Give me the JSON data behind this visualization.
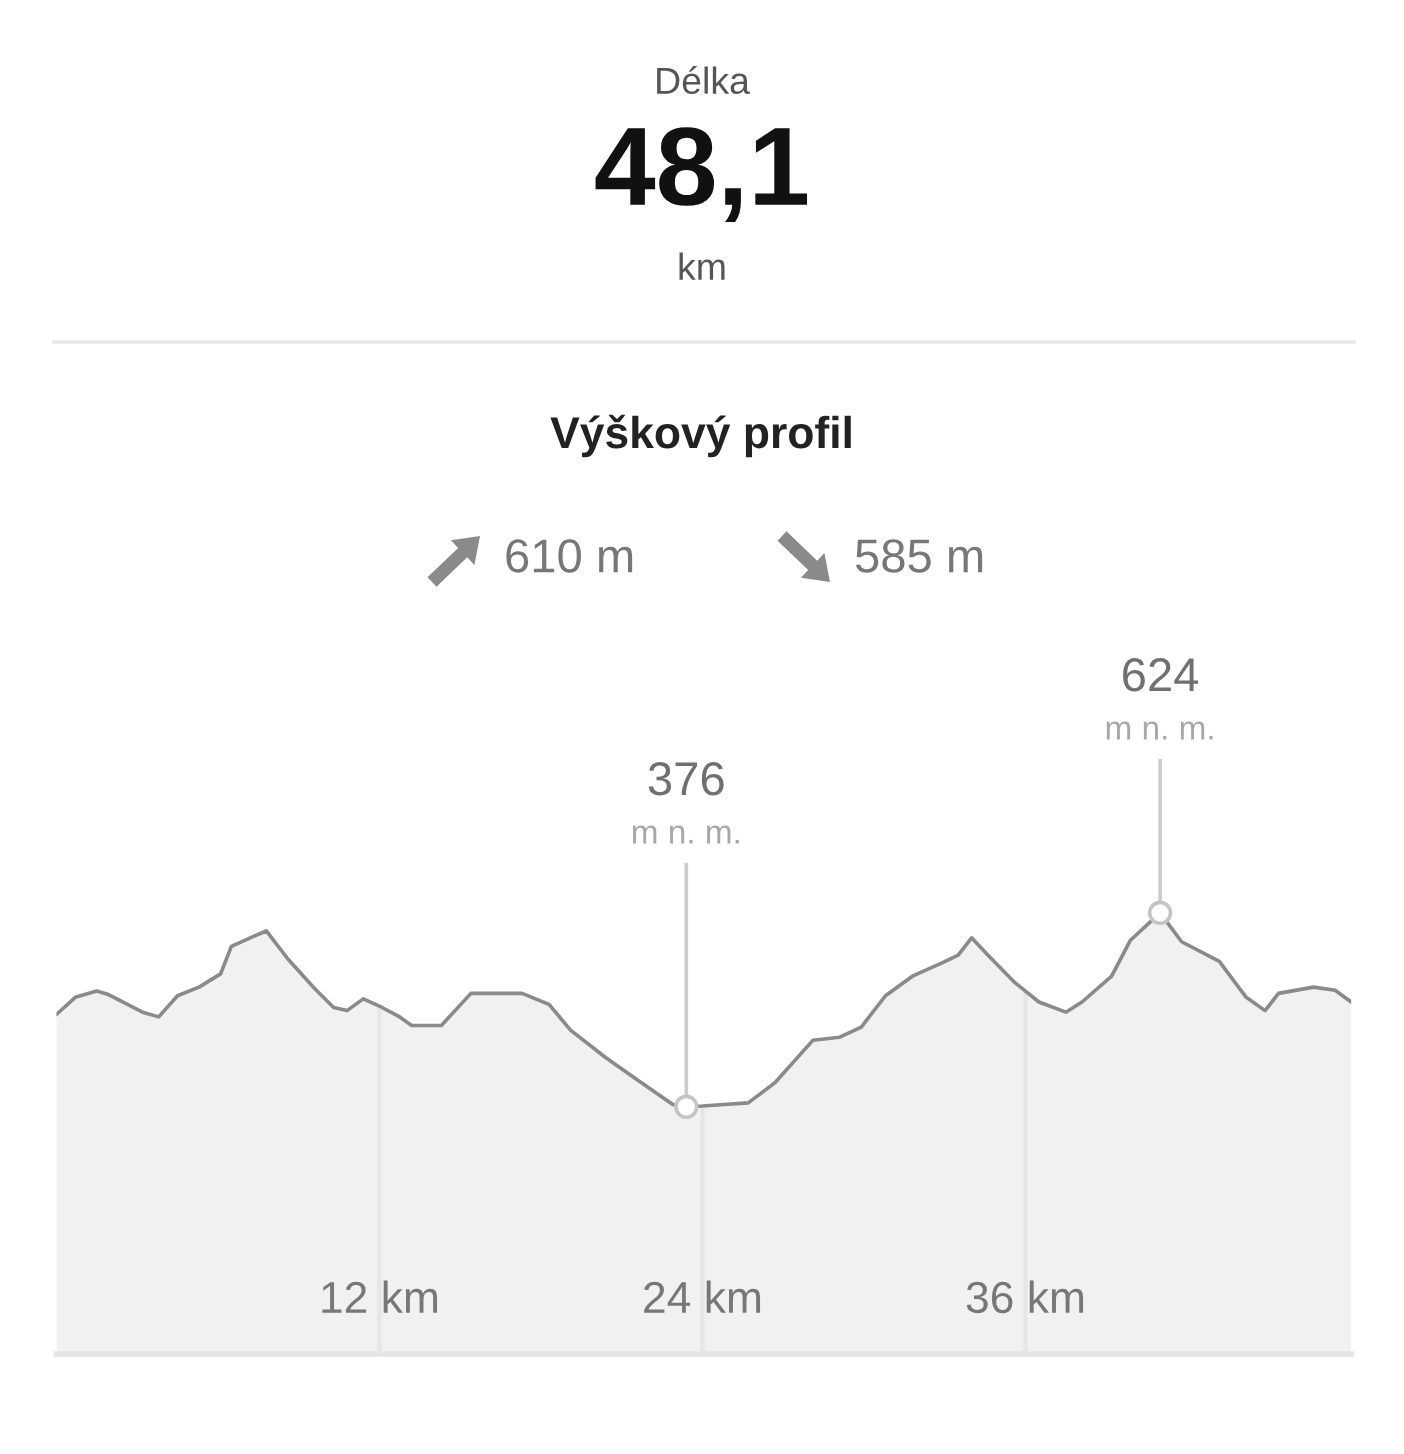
{
  "chart_data": {
    "type": "area",
    "title": "Výškový profil",
    "x": [
      0,
      0.7,
      1.5,
      1.9,
      3.2,
      3.8,
      4.5,
      5.3,
      6.1,
      6.5,
      7.2,
      7.8,
      8.6,
      9.6,
      10.3,
      10.8,
      11.4,
      12.1,
      12.7,
      13.2,
      14.3,
      15.4,
      17.3,
      18.3,
      19.1,
      20.4,
      21.6,
      22.9,
      23.4,
      24.0,
      24.8,
      25.7,
      26.7,
      28.1,
      29.1,
      29.9,
      30.8,
      31.8,
      32.9,
      33.5,
      34.0,
      34.6,
      35.6,
      36.5,
      37.5,
      38.1,
      39.2,
      39.9,
      41.0,
      41.8,
      43.2,
      44.2,
      44.9,
      45.4,
      46.7,
      47.5,
      48.1
    ],
    "series": [
      {
        "color": "#8a8a8a",
        "values": [
          494,
          516,
          524,
          520,
          497,
          491,
          518,
          529,
          546,
          581,
          592,
          601,
          565,
          527,
          503,
          499,
          514,
          503,
          492,
          480,
          480,
          521,
          521,
          507,
          474,
          439,
          410,
          379,
          376,
          377,
          379,
          381,
          407,
          461,
          465,
          478,
          518,
          543,
          560,
          570,
          592,
          570,
          535,
          510,
          497,
          510,
          543,
          589,
          624,
          587,
          562,
          516,
          499,
          521,
          529,
          525,
          510
        ],
        "value_labels": [
          null,
          null,
          null,
          null,
          null,
          null,
          null,
          null,
          null,
          null,
          null,
          null,
          null,
          null,
          null,
          null,
          null,
          null,
          null,
          null,
          null,
          null,
          null,
          null,
          null,
          null,
          null,
          null,
          "376\nm n. m.",
          null,
          null,
          null,
          null,
          null,
          null,
          null,
          null,
          null,
          null,
          null,
          null,
          null,
          null,
          null,
          null,
          null,
          null,
          null,
          "624\nm n. m.",
          null,
          null,
          null,
          null,
          null,
          null,
          null,
          null
        ]
      }
    ],
    "xlim": [
      0,
      48.1
    ],
    "ylim": [
      60,
      960
    ],
    "xticks": [
      {
        "value": 12,
        "label": "12 km"
      },
      {
        "value": 24,
        "label": "24 km"
      },
      {
        "value": 36,
        "label": "36 km"
      }
    ],
    "tick_labels": "x",
    "grid": "x",
    "annotations": [
      "Délka",
      "48,1",
      "km",
      "610 m",
      "585 m"
    ]
  }
}
